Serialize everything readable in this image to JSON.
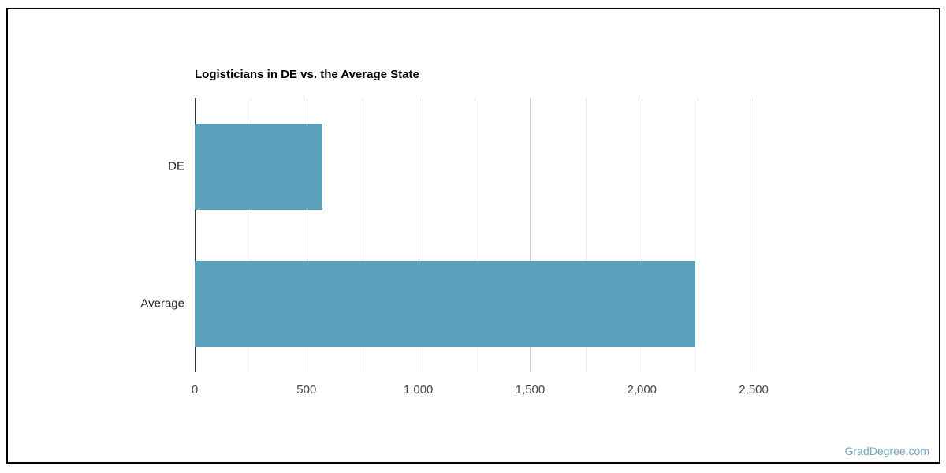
{
  "page": {
    "watermark": "GradDegree.com"
  },
  "theme": {
    "bar_color": "#5ba1bb",
    "axis_color": "#333333",
    "grid_major_color": "#cccccc",
    "grid_minor_color": "#e9e9e9",
    "tick_text_color": "#444444",
    "category_text_color": "#222222",
    "title_color": "#000000",
    "watermark_color": "#6da7c2",
    "border_color": "#000000"
  },
  "chart_data": {
    "type": "bar",
    "orientation": "horizontal",
    "title": "Logisticians in DE vs. the Average State",
    "categories": [
      "DE",
      "Average"
    ],
    "values": [
      570,
      2240
    ],
    "xlabel": "",
    "ylabel": "",
    "xlim": [
      0,
      2750
    ],
    "xticks": [
      0,
      500,
      1000,
      1500,
      2000,
      2500
    ],
    "xtick_labels": [
      "0",
      "500",
      "1,000",
      "1,500",
      "2,000",
      "2,500"
    ],
    "minor_grid_step": 250,
    "grid": true,
    "legend": "none"
  }
}
